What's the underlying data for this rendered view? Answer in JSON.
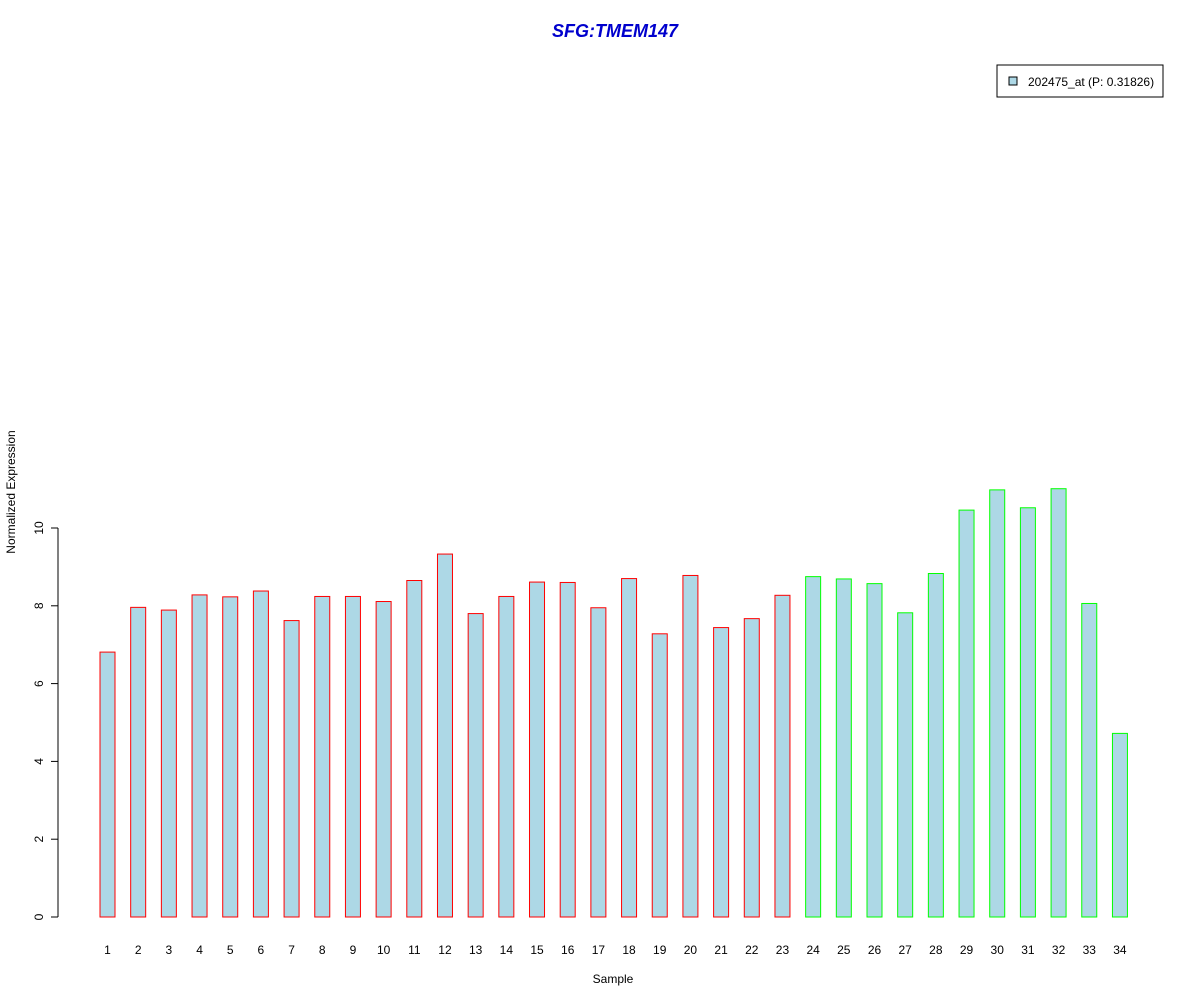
{
  "chart_data": {
    "type": "bar",
    "title": "SFG:TMEM147",
    "xlabel": "Sample",
    "ylabel": "Normalized Expression",
    "ylim": [
      0,
      11
    ],
    "yticks": [
      "0",
      "2",
      "4",
      "6",
      "8",
      "10"
    ],
    "categories": [
      "1",
      "2",
      "3",
      "4",
      "5",
      "6",
      "7",
      "8",
      "9",
      "10",
      "11",
      "12",
      "13",
      "14",
      "15",
      "16",
      "17",
      "18",
      "19",
      "20",
      "21",
      "22",
      "23",
      "24",
      "25",
      "26",
      "27",
      "28",
      "29",
      "30",
      "31",
      "32",
      "33",
      "34"
    ],
    "series": [
      {
        "name": "202475_at (P: 0.31826)",
        "values": [
          6.81,
          7.96,
          7.89,
          8.28,
          8.23,
          8.38,
          7.62,
          8.24,
          8.24,
          8.11,
          8.65,
          9.33,
          7.8,
          8.24,
          8.61,
          8.6,
          7.95,
          8.7,
          7.28,
          8.78,
          7.44,
          7.67,
          8.27,
          8.75,
          8.69,
          8.57,
          7.82,
          8.83,
          10.46,
          10.98,
          10.52,
          11.01,
          8.06,
          4.72
        ]
      }
    ],
    "groups": [
      "red",
      "red",
      "red",
      "red",
      "red",
      "red",
      "red",
      "red",
      "red",
      "red",
      "red",
      "red",
      "red",
      "red",
      "red",
      "red",
      "red",
      "red",
      "red",
      "red",
      "red",
      "red",
      "red",
      "green",
      "green",
      "green",
      "green",
      "green",
      "green",
      "green",
      "green",
      "green",
      "green",
      "green"
    ],
    "colors": {
      "bar_fill": "#add8e6",
      "group_red": "#ff0000",
      "group_green": "#00ff00",
      "title": "#0000cd",
      "axis": "#000000"
    },
    "grid": false,
    "legend_position": "top-right"
  }
}
